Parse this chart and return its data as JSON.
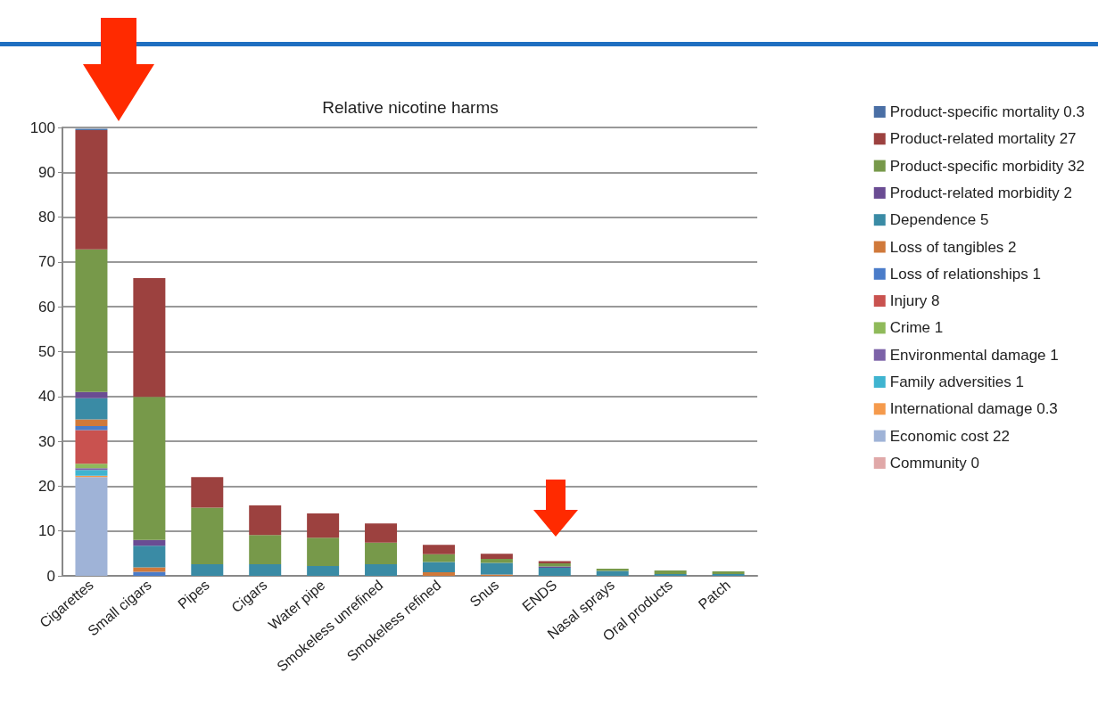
{
  "chart_data": {
    "type": "bar",
    "title": "Relative nicotine harms",
    "stacked": true,
    "grid": "y",
    "legend": "right",
    "categories": [
      "Cigarettes",
      "Small cigars",
      "Pipes",
      "Cigars",
      "Water pipe",
      "Smokeless unrefined",
      "Smokeless refined",
      "Snus",
      "ENDS",
      "Nasal sprays",
      "Oral products",
      "Patch"
    ],
    "ylim": [
      0,
      100
    ],
    "yticks": [
      0,
      10,
      20,
      30,
      40,
      50,
      60,
      70,
      80,
      90,
      100
    ],
    "series": [
      {
        "name": "Community 0",
        "color": "#e0a8a8",
        "values": [
          0,
          0,
          0,
          0,
          0,
          0,
          0,
          0,
          0,
          0,
          0,
          0
        ]
      },
      {
        "name": "Economic cost 22",
        "color": "#9fb3d7",
        "values": [
          22,
          0,
          0,
          0,
          0,
          0,
          0,
          0,
          0,
          0,
          0,
          0
        ]
      },
      {
        "name": "International damage 0.3",
        "color": "#f59a4c",
        "values": [
          0.3,
          0,
          0,
          0,
          0,
          0,
          0,
          0,
          0,
          0,
          0,
          0
        ]
      },
      {
        "name": "Family adversities 1",
        "color": "#3fb4d0",
        "values": [
          1.3,
          0,
          0,
          0,
          0,
          0,
          0,
          0,
          0,
          0,
          0,
          0
        ]
      },
      {
        "name": "Environmental damage 1",
        "color": "#7c62a8",
        "values": [
          0.4,
          0,
          0,
          0,
          0,
          0,
          0,
          0,
          0,
          0,
          0,
          0
        ]
      },
      {
        "name": "Crime 1",
        "color": "#8fba5a",
        "values": [
          1,
          0,
          0,
          0,
          0,
          0,
          0,
          0,
          0,
          0,
          0,
          0
        ]
      },
      {
        "name": "Injury 8",
        "color": "#c9524f",
        "values": [
          7.5,
          0,
          0,
          0,
          0,
          0,
          0,
          0,
          0,
          0,
          0,
          0
        ]
      },
      {
        "name": "Loss of relationships 1",
        "color": "#4a7cc9",
        "values": [
          0.9,
          0.9,
          0,
          0,
          0,
          0,
          0,
          0,
          0,
          0,
          0,
          0
        ]
      },
      {
        "name": "Loss of tangibles 2",
        "color": "#d0793a",
        "values": [
          1.5,
          1,
          0,
          0,
          0,
          0,
          0.8,
          0.3,
          0,
          0,
          0,
          0
        ]
      },
      {
        "name": "Dependence 5",
        "color": "#3a8ba5",
        "values": [
          4.7,
          4.8,
          2.6,
          2.6,
          2.2,
          2.6,
          2.3,
          2.6,
          1.8,
          1.1,
          0.4,
          0.4
        ]
      },
      {
        "name": "Product-related morbidity 2",
        "color": "#6a4c93",
        "values": [
          1.4,
          1.3,
          0,
          0,
          0,
          0,
          0,
          0,
          0.3,
          0,
          0,
          0
        ]
      },
      {
        "name": "Product-specific morbidity 32",
        "color": "#77994a",
        "values": [
          31.8,
          31.9,
          12.6,
          6.5,
          6.3,
          4.8,
          1.7,
          0.9,
          0.7,
          0.5,
          0.8,
          0.6
        ]
      },
      {
        "name": "Product-related mortality 27",
        "color": "#9c413f",
        "values": [
          26.6,
          26.5,
          6.8,
          6.6,
          5.4,
          4.3,
          2.1,
          1.1,
          0.5,
          0,
          0,
          0
        ]
      },
      {
        "name": "Product-specific mortality 0.3",
        "color": "#4a6fa5",
        "values": [
          0.3,
          0,
          0,
          0,
          0,
          0,
          0,
          0,
          0,
          0,
          0,
          0
        ]
      }
    ]
  }
}
